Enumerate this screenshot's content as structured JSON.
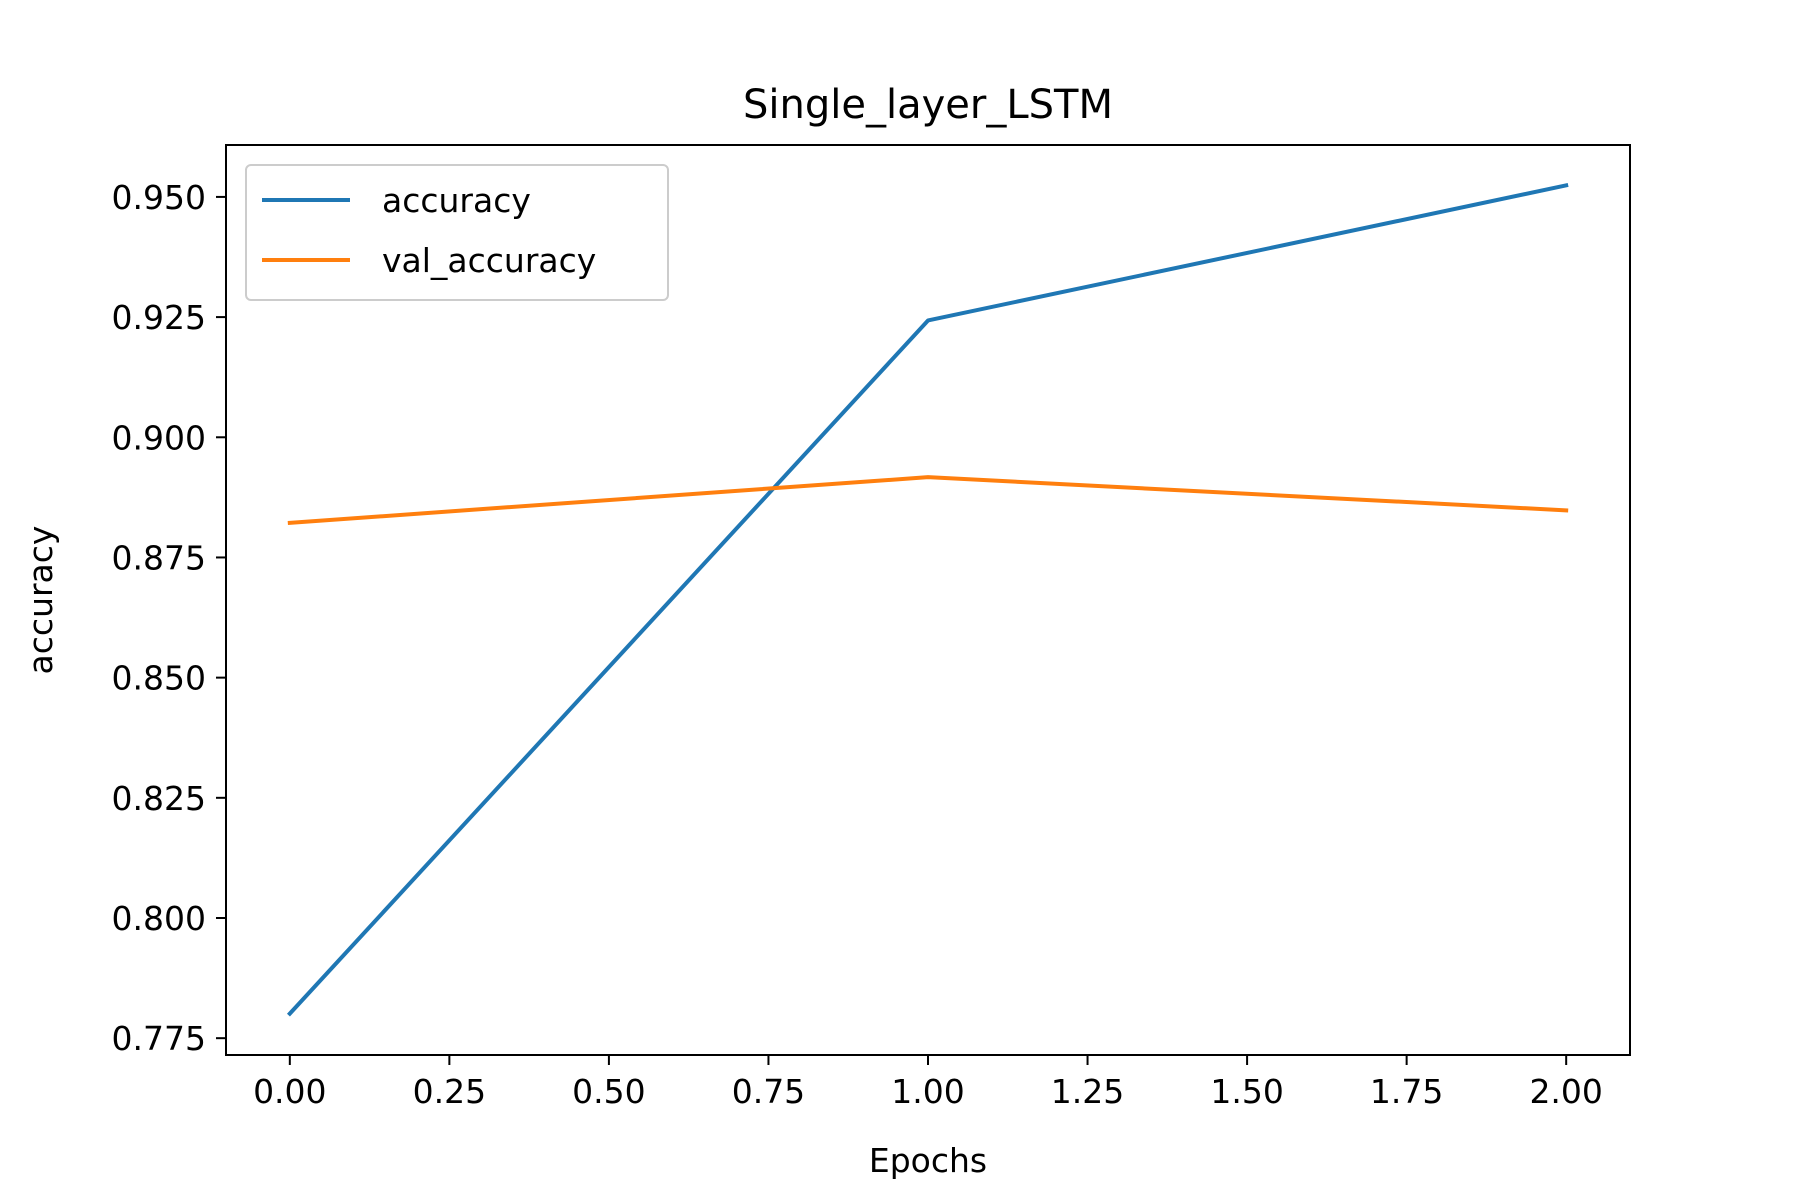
{
  "chart_data": {
    "type": "line",
    "title": "Single_layer_LSTM",
    "xlabel": "Epochs",
    "ylabel": "accuracy",
    "x": [
      0,
      1,
      2
    ],
    "series": [
      {
        "name": "accuracy",
        "color": "#1f77b4",
        "values": [
          0.7801,
          0.9243,
          0.9524
        ]
      },
      {
        "name": "val_accuracy",
        "color": "#ff7f0e",
        "values": [
          0.8822,
          0.8917,
          0.8848
        ]
      }
    ],
    "xlim": [
      -0.1,
      2.1
    ],
    "ylim": [
      0.7715,
      0.9608
    ],
    "xticks": [
      0,
      0.25,
      0.5,
      0.75,
      1.0,
      1.25,
      1.5,
      1.75,
      2.0
    ],
    "xtick_labels": [
      "0.00",
      "0.25",
      "0.50",
      "0.75",
      "1.00",
      "1.25",
      "1.50",
      "1.75",
      "2.00"
    ],
    "yticks": [
      0.775,
      0.8,
      0.825,
      0.85,
      0.875,
      0.9,
      0.925,
      0.95
    ],
    "ytick_labels": [
      "0.775",
      "0.800",
      "0.825",
      "0.850",
      "0.875",
      "0.900",
      "0.925",
      "0.950"
    ],
    "legend": "upper left",
    "grid": false
  }
}
